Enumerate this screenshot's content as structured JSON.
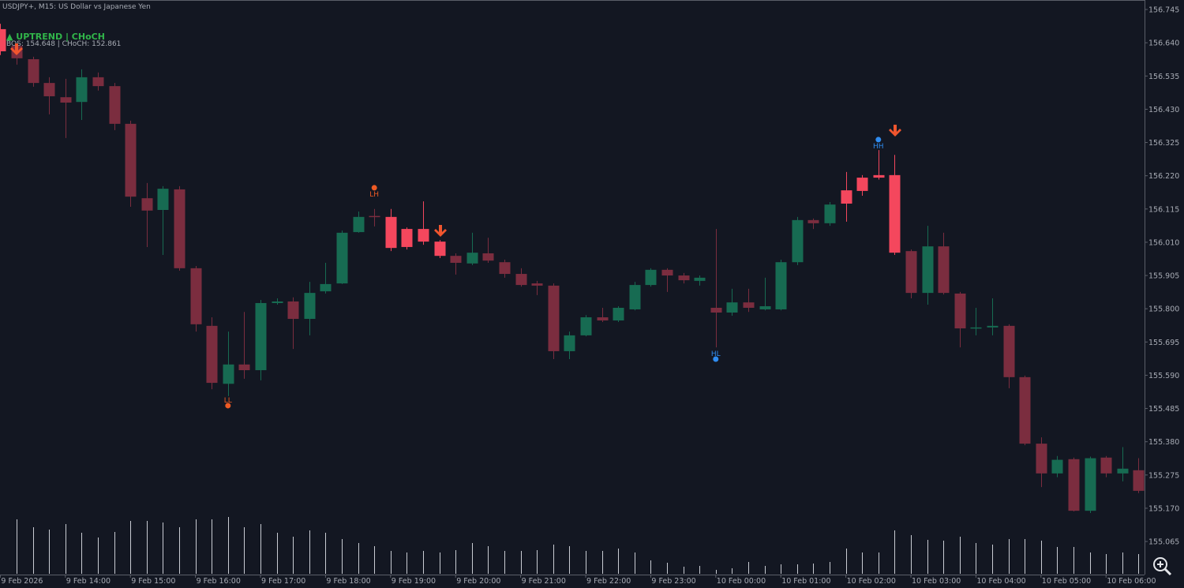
{
  "chart_data": {
    "type": "candlestick",
    "title": "USDJPY+, M15:  US Dollar vs Japanese Yen",
    "trend_label": "▲ UPTREND | CHoCH",
    "levels_label": "BOS: 154.648  |  CHoCH: 152.861",
    "categories": [
      "9 Feb 2026",
      null,
      null,
      null,
      "9 Feb 14:00",
      null,
      null,
      null,
      "9 Feb 15:00",
      null,
      null,
      null,
      "9 Feb 16:00",
      null,
      null,
      null,
      "9 Feb 17:00",
      null,
      null,
      null,
      "9 Feb 18:00",
      null,
      null,
      null,
      "9 Feb 19:00",
      null,
      null,
      null,
      "9 Feb 20:00",
      null,
      null,
      null,
      "9 Feb 21:00",
      null,
      null,
      null,
      "9 Feb 22:00",
      null,
      null,
      null,
      "9 Feb 23:00",
      null,
      null,
      null,
      "10 Feb 00:00",
      null,
      null,
      null,
      "10 Feb 01:00",
      null,
      null,
      null,
      "10 Feb 02:00",
      null,
      null,
      null,
      "10 Feb 03:00",
      null,
      null,
      null,
      "10 Feb 04:00",
      null,
      null,
      null,
      "10 Feb 05:00",
      null,
      null,
      null,
      "10 Feb 06:00",
      null,
      null
    ],
    "open": [
      156.683,
      156.63,
      156.588,
      156.513,
      156.468,
      156.453,
      156.531,
      156.503,
      156.384,
      156.149,
      156.112,
      156.177,
      155.928,
      155.746,
      155.563,
      155.624,
      155.606,
      155.818,
      155.823,
      155.768,
      155.855,
      155.88,
      156.042,
      156.093,
      156.09,
      156.052,
      156.052,
      156.012,
      155.967,
      155.943,
      155.975,
      155.947,
      155.91,
      155.88,
      155.873,
      155.666,
      155.716,
      155.773,
      155.763,
      155.798,
      155.875,
      155.923,
      155.905,
      155.888,
      155.803,
      155.788,
      155.82,
      155.798,
      155.798,
      155.947,
      156.08,
      156.07,
      156.132,
      156.172,
      156.214,
      156.222,
      155.982,
      155.85,
      155.997,
      155.848,
      155.738,
      155.741,
      155.746,
      155.584,
      155.374,
      155.28,
      155.325,
      155.162,
      155.33,
      155.28,
      155.29
    ],
    "high": [
      156.7,
      156.638,
      156.596,
      156.531,
      156.526,
      156.556,
      156.546,
      156.513,
      156.394,
      156.197,
      156.187,
      156.187,
      155.935,
      155.773,
      155.728,
      155.79,
      155.828,
      155.833,
      155.836,
      155.885,
      155.945,
      156.047,
      156.107,
      156.115,
      156.115,
      156.057,
      156.139,
      156.017,
      155.975,
      156.04,
      156.024,
      155.955,
      155.928,
      155.888,
      155.88,
      155.728,
      155.78,
      155.803,
      155.808,
      155.885,
      155.928,
      155.928,
      155.913,
      155.905,
      156.052,
      155.863,
      155.863,
      155.898,
      155.955,
      156.09,
      156.085,
      156.137,
      156.232,
      156.222,
      156.301,
      156.286,
      155.987,
      156.062,
      156.04,
      155.853,
      155.803,
      155.833,
      155.751,
      155.589,
      155.394,
      155.335,
      155.33,
      155.333,
      155.335,
      155.363,
      155.328
    ],
    "low": [
      156.601,
      156.571,
      156.501,
      156.414,
      156.339,
      156.396,
      156.489,
      156.364,
      156.122,
      155.995,
      155.97,
      155.92,
      155.728,
      155.546,
      155.524,
      155.579,
      155.574,
      155.813,
      155.673,
      155.716,
      155.848,
      155.878,
      156.04,
      156.06,
      155.982,
      155.987,
      156.002,
      155.96,
      155.908,
      155.938,
      155.945,
      155.898,
      155.87,
      155.843,
      155.641,
      155.641,
      155.713,
      155.758,
      155.758,
      155.795,
      155.87,
      155.853,
      155.88,
      155.873,
      155.678,
      155.778,
      155.79,
      155.795,
      155.795,
      155.938,
      156.052,
      156.062,
      156.075,
      156.157,
      156.208,
      155.97,
      155.833,
      155.813,
      155.845,
      155.678,
      155.716,
      155.716,
      155.549,
      155.369,
      155.237,
      155.268,
      155.16,
      155.155,
      155.268,
      155.255,
      155.218
    ],
    "close": [
      156.613,
      156.591,
      156.513,
      156.471,
      156.451,
      156.531,
      156.503,
      156.384,
      156.154,
      156.11,
      156.179,
      155.928,
      155.751,
      155.566,
      155.624,
      155.606,
      155.818,
      155.823,
      155.768,
      155.85,
      155.878,
      156.04,
      156.09,
      156.09,
      155.992,
      155.995,
      156.012,
      155.967,
      155.945,
      155.977,
      155.952,
      155.91,
      155.875,
      155.873,
      155.666,
      155.716,
      155.773,
      155.763,
      155.803,
      155.875,
      155.923,
      155.905,
      155.89,
      155.898,
      155.788,
      155.82,
      155.803,
      155.808,
      155.947,
      156.08,
      156.07,
      156.129,
      156.174,
      156.214,
      156.222,
      155.977,
      155.85,
      155.997,
      155.85,
      155.738,
      155.741,
      155.746,
      155.584,
      155.374,
      155.28,
      155.323,
      155.162,
      155.328,
      155.28,
      155.295,
      155.225
    ],
    "volume": [
      null,
      69,
      59,
      56,
      63,
      52,
      46,
      53,
      67,
      67,
      65,
      59,
      69,
      69,
      72,
      59,
      63,
      52,
      47,
      55,
      52,
      44,
      39,
      35,
      29,
      27,
      29,
      27,
      30,
      39,
      35,
      29,
      29,
      30,
      37,
      35,
      29,
      29,
      32,
      27,
      17,
      14,
      9,
      10,
      5,
      7,
      15,
      10,
      12,
      12,
      13,
      15,
      32,
      27,
      27,
      55,
      49,
      43,
      42,
      47,
      39,
      37,
      44,
      44,
      42,
      34,
      34,
      27,
      25,
      27,
      25
    ],
    "volume_ylim": [
      0,
      75
    ],
    "up_color": "#176b52",
    "down_color": "#7b2d3f",
    "highlight_color": "#f4475d",
    "highlighted": [
      0,
      24,
      25,
      26,
      27,
      52,
      53,
      54,
      55
    ],
    "volume_color": "#c9ccd3",
    "ylim": [
      154.963,
      156.775
    ],
    "yticks": [
      156.745,
      {
        "value": 156.64,
        "label": "156.640"
      },
      156.535,
      {
        "value": 156.43,
        "label": "156.430"
      },
      156.325,
      {
        "value": 156.22,
        "label": "156.220"
      },
      156.115,
      {
        "value": 156.01,
        "label": "156.010"
      },
      155.905,
      {
        "value": 155.8,
        "label": "155.800"
      },
      155.695,
      {
        "value": 155.59,
        "label": "155.590"
      },
      155.485,
      {
        "value": 155.38,
        "label": "155.380"
      },
      155.275,
      {
        "value": 155.17,
        "label": "155.170"
      },
      155.065
    ],
    "swings": [
      {
        "label": "LL",
        "candle": 14,
        "price": 155.494,
        "side": "below",
        "color": "#ee5a24"
      },
      {
        "label": "LH",
        "candle": 23,
        "price": 156.182,
        "side": "above",
        "color": "#ee5a24"
      },
      {
        "label": "HL",
        "candle": 44,
        "price": 155.641,
        "side": "below",
        "color": "#2f8cf0"
      },
      {
        "label": "HH",
        "candle": 54,
        "price": 156.334,
        "side": "above",
        "color": "#2f8cf0"
      }
    ]
  }
}
